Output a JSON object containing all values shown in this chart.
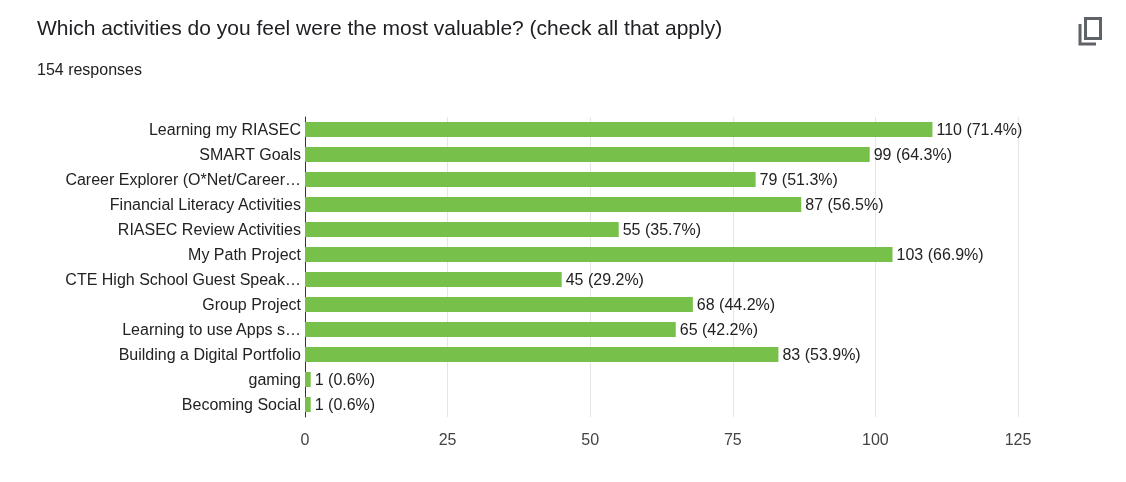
{
  "chart_data": {
    "type": "bar",
    "orientation": "horizontal",
    "title": "Which activities do you feel were the most valuable? (check all that apply)",
    "subtitle": "154 responses",
    "categories": [
      "Learning my RIASEC",
      "SMART Goals",
      "Career Explorer (O*Net/Career…",
      "Financial Literacy Activities",
      "RIASEC Review Activities",
      "My Path Project",
      "CTE High School Guest Speak…",
      "Group Project",
      "Learning to use Apps s…",
      "Building a Digital Portfolio",
      "gaming",
      "Becoming Social"
    ],
    "values": [
      110,
      99,
      79,
      87,
      55,
      103,
      45,
      68,
      65,
      83,
      1,
      1
    ],
    "value_labels": [
      "110 (71.4%)",
      "99 (64.3%)",
      "79 (51.3%)",
      "87 (56.5%)",
      "55 (35.7%)",
      "103 (66.9%)",
      "45 (29.2%)",
      "68 (44.2%)",
      "65 (42.2%)",
      "83 (53.9%)",
      "1 (0.6%)",
      "1 (0.6%)"
    ],
    "color": "#77c14a",
    "xlim": [
      0,
      125
    ],
    "xticks": [
      0,
      25,
      50,
      75,
      100,
      125
    ],
    "grid": "x"
  }
}
